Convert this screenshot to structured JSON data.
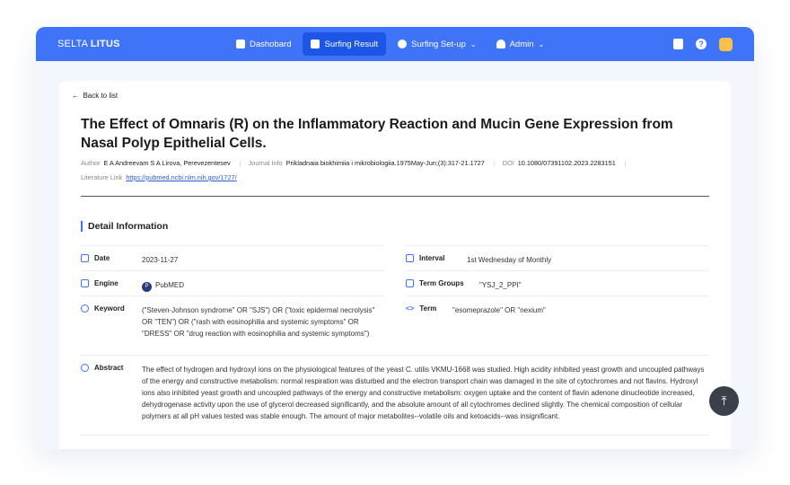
{
  "header": {
    "logo_light": "SELTA",
    "logo_bold": "LITUS",
    "nav": [
      {
        "label": "Dashobard",
        "icon": "dashboard-icon"
      },
      {
        "label": "Surfing Result",
        "icon": "folder-icon",
        "active": true
      },
      {
        "label": "Surfing Set-up",
        "icon": "gear-icon",
        "dropdown": true
      },
      {
        "label": "Admin",
        "icon": "user-icon",
        "dropdown": true
      }
    ],
    "accent": "#3f73f8"
  },
  "back_label": "Back to list",
  "article": {
    "title": "The Effect of Omnaris (R) on the Inflammatory Reaction and Mucin Gene Expression from Nasal Polyp Epithelial Cells.",
    "author_label": "Author",
    "author": "E A Andreevam S A Lirova, Perevezentesev",
    "journal_label": "Journal Info",
    "journal": "Prikladnaia biokhimiia i mikrobiologiia.1975May-Jun;(3):317-21.1727",
    "doi_label": "DOI",
    "doi": "10.1080/07391102.2023.2283151",
    "link_label": "Literature Link",
    "link": "https://pubmed.ncbi.nlm.nih.gov/1727/"
  },
  "detail": {
    "title": "Detail Information",
    "date_label": "Date",
    "date": "2023-11-27",
    "interval_label": "Interval",
    "interval": "1st Wednesday of Monthly",
    "engine_label": "Engine",
    "engine_badge": "P",
    "engine": "PubMED",
    "term_groups_label": "Term Groups",
    "term_groups": "\"YSJ_2_PPI\"",
    "keyword_label": "Keyword",
    "keyword": "(\"Steven-Johnson syndrome\" OR \"SJS\") OR (\"toxic epidermal necrolysis\" OR \"TEN\") OR (\"rash with eosinophilia and systemic symptoms\" OR \"DRESS\" OR \"drug reaction with eosinophilia and systemic symptoms\")",
    "term_label": "Term",
    "term": "\"esomeprazole\" OR \"nexium\"",
    "abstract_label": "Abstract",
    "abstract": "The effect of hydrogen and hydroxyl ions on the physiological features of the yeast C. utilis VKMU-1668 was studied. High acidity inhibited yeast growth and uncoupled pathways of the energy and constructive metabolism: normal respiration was disturbed and the electron transport chain was damaged in the site of cytochromes and not flavins. Hydroxyl ions also inhibited yeast growth and uncoupled pathways of the energy and constructive metabolism: oxygen uptake and the content of flavin adenone dinucleotide increased, dehydrogenase activity upon the use of glycerol decreased significantly, and the absolute amount of all cytochromes declined slightly. The chemical composition of cellular polymers at all pH values tested was stable enough. The amount of major metabolites--volatile oils and ketoacids--was insignificant."
  }
}
